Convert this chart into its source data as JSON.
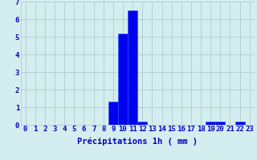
{
  "hours": [
    0,
    1,
    2,
    3,
    4,
    5,
    6,
    7,
    8,
    9,
    10,
    11,
    12,
    13,
    14,
    15,
    16,
    17,
    18,
    19,
    20,
    21,
    22,
    23
  ],
  "values": [
    0,
    0,
    0,
    0,
    0,
    0,
    0,
    0,
    0,
    1.3,
    5.2,
    6.5,
    0.2,
    0,
    0,
    0,
    0,
    0,
    0,
    0.2,
    0.2,
    0,
    0.2,
    0
  ],
  "bar_color": "#0000ee",
  "bar_edge_color": "#1155ff",
  "background_color": "#d4eef0",
  "grid_color": "#b0cccc",
  "text_color": "#0000bb",
  "xlabel": "Précipitations 1h ( mm )",
  "ylim": [
    0,
    7
  ],
  "yticks": [
    0,
    1,
    2,
    3,
    4,
    5,
    6,
    7
  ],
  "xlim": [
    -0.5,
    23.5
  ],
  "xlabel_fontsize": 7.5,
  "tick_fontsize": 6.5
}
